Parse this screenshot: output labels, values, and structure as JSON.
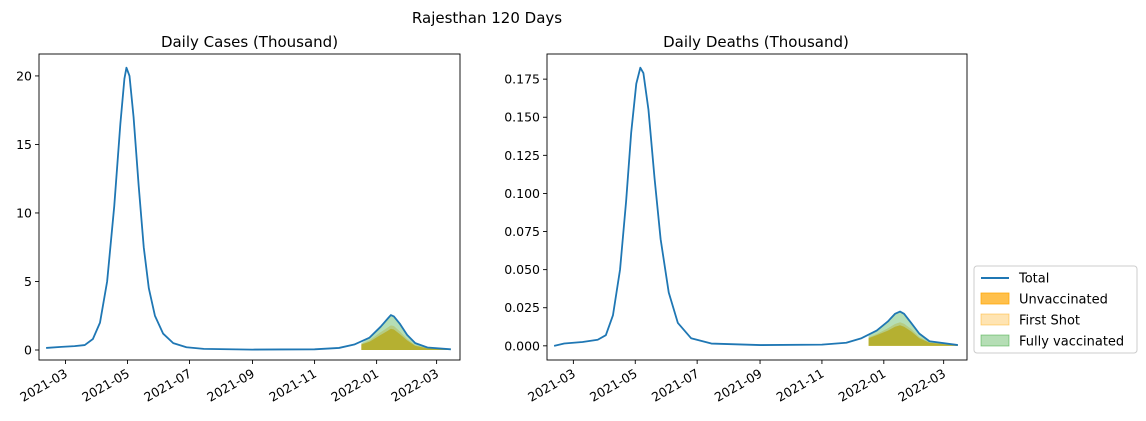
{
  "figure": {
    "suptitle": "Rajesthan 120 Days"
  },
  "legend": {
    "placement": "right",
    "entries": [
      {
        "label": "Total",
        "kind": "line",
        "color": "#1f77b4"
      },
      {
        "label": "Unvaccinated",
        "kind": "patch",
        "color": "#ffa500",
        "alpha": 0.7
      },
      {
        "label": "First Shot",
        "kind": "patch",
        "color": "#ffa500",
        "alpha": 0.3
      },
      {
        "label": "Fully vaccinated",
        "kind": "patch",
        "color": "#2ca02c",
        "alpha": 0.35
      }
    ]
  },
  "chart_data": [
    {
      "type": "area",
      "title": "Daily Cases (Thousand)",
      "xlabel": "",
      "ylabel": "",
      "xlim": [
        "2021-02-03",
        "2022-03-24"
      ],
      "ylim": [
        -0.73,
        21.6
      ],
      "xticks": [
        "2021-03",
        "2021-05",
        "2021-07",
        "2021-09",
        "2021-11",
        "2022-01",
        "2022-03"
      ],
      "yticks": [
        0,
        5,
        10,
        15,
        20
      ],
      "grid": false,
      "series": [
        {
          "name": "Total",
          "type": "line",
          "color": "#1f77b4",
          "points": [
            [
              "2021-02-10",
              0.15
            ],
            [
              "2021-02-25",
              0.23
            ],
            [
              "2021-03-10",
              0.28
            ],
            [
              "2021-03-20",
              0.36
            ],
            [
              "2021-03-28",
              0.8
            ],
            [
              "2021-04-04",
              2.0
            ],
            [
              "2021-04-11",
              5.0
            ],
            [
              "2021-04-18",
              10.5
            ],
            [
              "2021-04-24",
              16.5
            ],
            [
              "2021-04-28",
              19.8
            ],
            [
              "2021-04-30",
              20.6
            ],
            [
              "2021-05-03",
              20.0
            ],
            [
              "2021-05-07",
              17.0
            ],
            [
              "2021-05-12",
              12.0
            ],
            [
              "2021-05-17",
              7.5
            ],
            [
              "2021-05-22",
              4.5
            ],
            [
              "2021-05-28",
              2.5
            ],
            [
              "2021-06-05",
              1.2
            ],
            [
              "2021-06-15",
              0.5
            ],
            [
              "2021-06-28",
              0.2
            ],
            [
              "2021-07-15",
              0.08
            ],
            [
              "2021-09-01",
              0.03
            ],
            [
              "2021-11-01",
              0.05
            ],
            [
              "2021-11-25",
              0.15
            ],
            [
              "2021-12-10",
              0.4
            ],
            [
              "2021-12-25",
              0.9
            ],
            [
              "2022-01-05",
              1.7
            ],
            [
              "2022-01-12",
              2.3
            ],
            [
              "2022-01-15",
              2.55
            ],
            [
              "2022-01-18",
              2.45
            ],
            [
              "2022-01-24",
              1.9
            ],
            [
              "2022-01-31",
              1.1
            ],
            [
              "2022-02-08",
              0.5
            ],
            [
              "2022-02-20",
              0.18
            ],
            [
              "2022-03-15",
              0.05
            ]
          ]
        },
        {
          "name": "Unvaccinated",
          "type": "area",
          "color": "#ffa500",
          "alpha": 0.7,
          "points": [
            [
              "2021-12-17",
              0.0
            ],
            [
              "2021-12-17",
              0.4
            ],
            [
              "2021-12-25",
              0.6
            ],
            [
              "2022-01-05",
              1.1
            ],
            [
              "2022-01-12",
              1.4
            ],
            [
              "2022-01-15",
              1.55
            ],
            [
              "2022-01-18",
              1.5
            ],
            [
              "2022-01-24",
              1.15
            ],
            [
              "2022-01-31",
              0.7
            ],
            [
              "2022-02-08",
              0.3
            ],
            [
              "2022-02-20",
              0.12
            ],
            [
              "2022-03-15",
              0.03
            ]
          ]
        },
        {
          "name": "First Shot",
          "type": "area",
          "color": "#ffa500",
          "alpha": 0.3,
          "points": [
            [
              "2021-12-17",
              0.45
            ],
            [
              "2021-12-25",
              0.7
            ],
            [
              "2022-01-05",
              1.3
            ],
            [
              "2022-01-12",
              1.65
            ],
            [
              "2022-01-15",
              1.8
            ],
            [
              "2022-01-18",
              1.75
            ],
            [
              "2022-01-24",
              1.35
            ],
            [
              "2022-01-31",
              0.8
            ],
            [
              "2022-02-08",
              0.36
            ],
            [
              "2022-02-20",
              0.14
            ],
            [
              "2022-03-15",
              0.04
            ]
          ]
        },
        {
          "name": "Fully vaccinated",
          "type": "area",
          "color": "#2ca02c",
          "alpha": 0.35,
          "points": [
            [
              "2021-12-17",
              0.5
            ],
            [
              "2021-12-25",
              0.9
            ],
            [
              "2022-01-05",
              1.7
            ],
            [
              "2022-01-12",
              2.3
            ],
            [
              "2022-01-15",
              2.55
            ],
            [
              "2022-01-18",
              2.45
            ],
            [
              "2022-01-24",
              1.9
            ],
            [
              "2022-01-31",
              1.1
            ],
            [
              "2022-02-08",
              0.5
            ],
            [
              "2022-02-20",
              0.18
            ],
            [
              "2022-03-15",
              0.05
            ]
          ]
        }
      ]
    },
    {
      "type": "area",
      "title": "Daily Deaths (Thousand)",
      "xlabel": "",
      "ylabel": "",
      "xlim": [
        "2021-02-03",
        "2022-03-24"
      ],
      "ylim": [
        -0.0093,
        0.1915
      ],
      "xticks": [
        "2021-03",
        "2021-05",
        "2021-07",
        "2021-09",
        "2021-11",
        "2022-01",
        "2022-03"
      ],
      "yticks": [
        0.0,
        0.025,
        0.05,
        0.075,
        0.1,
        0.125,
        0.15,
        0.175
      ],
      "ytick_labels": [
        "0.000",
        "0.025",
        "0.050",
        "0.075",
        "0.100",
        "0.125",
        "0.150",
        "0.175"
      ],
      "grid": false,
      "series": [
        {
          "name": "Total",
          "type": "line",
          "color": "#1f77b4",
          "points": [
            [
              "2021-02-10",
              0.0
            ],
            [
              "2021-02-20",
              0.0015
            ],
            [
              "2021-03-10",
              0.0025
            ],
            [
              "2021-03-25",
              0.004
            ],
            [
              "2021-04-02",
              0.007
            ],
            [
              "2021-04-09",
              0.02
            ],
            [
              "2021-04-16",
              0.05
            ],
            [
              "2021-04-22",
              0.095
            ],
            [
              "2021-04-27",
              0.14
            ],
            [
              "2021-05-02",
              0.172
            ],
            [
              "2021-05-06",
              0.1825
            ],
            [
              "2021-05-09",
              0.179
            ],
            [
              "2021-05-14",
              0.155
            ],
            [
              "2021-05-20",
              0.11
            ],
            [
              "2021-05-26",
              0.07
            ],
            [
              "2021-06-03",
              0.035
            ],
            [
              "2021-06-12",
              0.015
            ],
            [
              "2021-06-25",
              0.005
            ],
            [
              "2021-07-15",
              0.0015
            ],
            [
              "2021-09-01",
              0.0005
            ],
            [
              "2021-11-01",
              0.0008
            ],
            [
              "2021-11-25",
              0.002
            ],
            [
              "2021-12-10",
              0.005
            ],
            [
              "2021-12-25",
              0.01
            ],
            [
              "2022-01-05",
              0.016
            ],
            [
              "2022-01-12",
              0.021
            ],
            [
              "2022-01-17",
              0.0225
            ],
            [
              "2022-01-21",
              0.021
            ],
            [
              "2022-01-28",
              0.015
            ],
            [
              "2022-02-05",
              0.008
            ],
            [
              "2022-02-15",
              0.003
            ],
            [
              "2022-03-15",
              0.0005
            ]
          ]
        },
        {
          "name": "Unvaccinated",
          "type": "area",
          "color": "#ffa500",
          "alpha": 0.7,
          "points": [
            [
              "2021-12-17",
              0.0
            ],
            [
              "2021-12-17",
              0.005
            ],
            [
              "2021-12-25",
              0.007
            ],
            [
              "2022-01-05",
              0.01
            ],
            [
              "2022-01-12",
              0.0125
            ],
            [
              "2022-01-17",
              0.0135
            ],
            [
              "2022-01-21",
              0.0125
            ],
            [
              "2022-01-28",
              0.0095
            ],
            [
              "2022-02-05",
              0.005
            ],
            [
              "2022-02-15",
              0.002
            ],
            [
              "2022-03-15",
              0.0003
            ]
          ]
        },
        {
          "name": "First Shot",
          "type": "area",
          "color": "#ffa500",
          "alpha": 0.3,
          "points": [
            [
              "2021-12-17",
              0.0055
            ],
            [
              "2021-12-25",
              0.0078
            ],
            [
              "2022-01-05",
              0.0115
            ],
            [
              "2022-01-12",
              0.0143
            ],
            [
              "2022-01-17",
              0.0155
            ],
            [
              "2022-01-21",
              0.0145
            ],
            [
              "2022-01-28",
              0.011
            ],
            [
              "2022-02-05",
              0.0058
            ],
            [
              "2022-02-15",
              0.0023
            ],
            [
              "2022-03-15",
              0.0004
            ]
          ]
        },
        {
          "name": "Fully vaccinated",
          "type": "area",
          "color": "#2ca02c",
          "alpha": 0.35,
          "points": [
            [
              "2021-12-17",
              0.0065
            ],
            [
              "2021-12-25",
              0.01
            ],
            [
              "2022-01-05",
              0.016
            ],
            [
              "2022-01-12",
              0.021
            ],
            [
              "2022-01-17",
              0.0225
            ],
            [
              "2022-01-21",
              0.021
            ],
            [
              "2022-01-28",
              0.015
            ],
            [
              "2022-02-05",
              0.008
            ],
            [
              "2022-02-15",
              0.003
            ],
            [
              "2022-03-15",
              0.0005
            ]
          ]
        }
      ]
    }
  ]
}
